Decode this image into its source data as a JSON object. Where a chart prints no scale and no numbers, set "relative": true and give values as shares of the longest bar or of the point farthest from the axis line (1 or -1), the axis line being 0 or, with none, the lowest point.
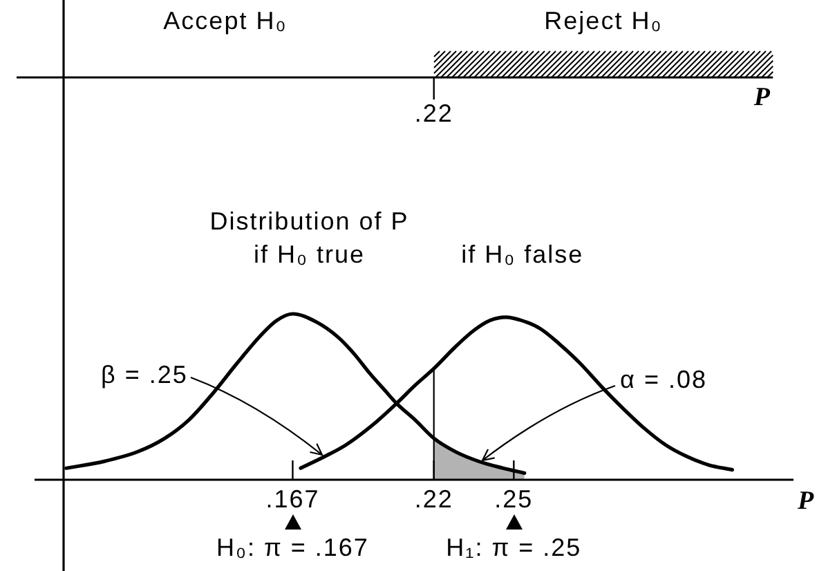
{
  "chart_data": {
    "type": "line",
    "xlabel": "P",
    "xlim": [
      0.081,
      0.355
    ],
    "xticks": [
      {
        "value": 0.167,
        "label": ".167"
      },
      {
        "value": 0.22,
        "label": ".22"
      },
      {
        "value": 0.25,
        "label": ".25"
      }
    ],
    "relative": true,
    "legend": false,
    "annotations": [
      "Accept H₀",
      "Reject H₀",
      {
        "text": ".22",
        "x": 0.22
      },
      "Distribution of P",
      {
        "text": "β = .25",
        "x": 0.178,
        "y": 0.15
      },
      {
        "text": "α = .08",
        "x": 0.238,
        "y": 0.12
      },
      "H₀: π = .167",
      "H₁: π = .25"
    ],
    "series": [
      {
        "name": "if H₀ true",
        "color": "#000000",
        "x": [
          0.082,
          0.096,
          0.109,
          0.119,
          0.128,
          0.137,
          0.146,
          0.155,
          0.161,
          0.167,
          0.176,
          0.184,
          0.19,
          0.196,
          0.201,
          0.206,
          0.213,
          0.22,
          0.228,
          0.237,
          0.246,
          0.254
        ],
        "values": [
          0.07,
          0.11,
          0.17,
          0.25,
          0.36,
          0.52,
          0.7,
          0.87,
          0.96,
          1.0,
          0.95,
          0.86,
          0.76,
          0.64,
          0.55,
          0.46,
          0.36,
          0.25,
          0.17,
          0.11,
          0.07,
          0.04
        ]
      },
      {
        "name": "if H₀ false",
        "color": "#000000",
        "x": [
          0.17,
          0.179,
          0.187,
          0.197,
          0.206,
          0.213,
          0.22,
          0.228,
          0.235,
          0.241,
          0.247,
          0.253,
          0.26,
          0.267,
          0.275,
          0.283,
          0.291,
          0.299,
          0.307,
          0.315,
          0.323,
          0.332
        ],
        "values": [
          0.07,
          0.14,
          0.21,
          0.33,
          0.46,
          0.57,
          0.67,
          0.8,
          0.9,
          0.96,
          0.98,
          0.96,
          0.91,
          0.82,
          0.7,
          0.56,
          0.43,
          0.31,
          0.21,
          0.14,
          0.09,
          0.06
        ]
      },
      {
        "type": "area",
        "color": "#b3b3b3",
        "x": [
          0.22,
          0.228,
          0.237,
          0.246,
          0.254
        ],
        "values": [
          0.25,
          0.17,
          0.11,
          0.07,
          0.04
        ]
      },
      {
        "type": "line",
        "color": "#000000",
        "x": [
          0.22,
          0.22
        ],
        "values": [
          0,
          0.67
        ]
      }
    ]
  }
}
